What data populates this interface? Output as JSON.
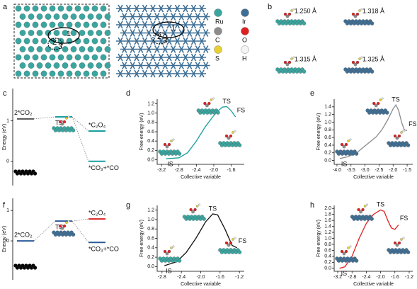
{
  "panel_labels": [
    "a",
    "b",
    "c",
    "d",
    "e",
    "f",
    "g",
    "h"
  ],
  "panel_a": {
    "site_labels": [
      "1",
      "2",
      "3"
    ],
    "legend": [
      {
        "label": "Ru",
        "color": "#3aa6a0"
      },
      {
        "label": "Ir",
        "color": "#3f6f95"
      },
      {
        "label": "C",
        "color": "#8c8c8c"
      },
      {
        "label": "O",
        "color": "#e02020"
      },
      {
        "label": "S",
        "color": "#e8d030"
      },
      {
        "label": "H",
        "color": "#f4f4f4"
      }
    ]
  },
  "panel_b": {
    "bond_lengths": [
      "1.250 Å",
      "1.318 Å",
      "1.315 Å",
      "1.325 Å"
    ]
  },
  "chart_data": [
    {
      "type": "energy-diagram",
      "ylabel": "Energy (eV)",
      "categories": [
        "2*CO₂",
        "TS",
        "*C₂O₄",
        "*CO₃+*CO"
      ],
      "values": [
        1.05,
        1.1,
        0.75,
        0.0
      ],
      "colors": [
        "#555555",
        "#1a9ea0",
        "#1a9ea0",
        "#1a9ea0"
      ],
      "ylim": [
        -0.6,
        1.8
      ],
      "yticks": [
        0,
        1
      ]
    },
    {
      "type": "line",
      "xlabel": "Collective variable",
      "ylabel": "Free energy (eV)",
      "annotations": [
        "IS",
        "TS",
        "FS"
      ],
      "color": "#1a9ea0",
      "x": [
        -3.1,
        -2.8,
        -2.6,
        -2.4,
        -2.2,
        -2.0,
        -1.9,
        -1.8,
        -1.7,
        -1.6,
        -1.5
      ],
      "values": [
        0.02,
        0.04,
        0.15,
        0.4,
        0.7,
        0.95,
        1.05,
        1.13,
        1.14,
        1.05,
        0.92
      ],
      "xlim": [
        -3.3,
        -1.3
      ],
      "ylim": [
        -0.1,
        1.3
      ],
      "xticks": [
        -3.2,
        -2.8,
        -2.4,
        {
          "value": -2,
          "label": "-2.0"
        },
        -1.6
      ],
      "yticks": [
        {
          "value": 0,
          "label": "0.0"
        },
        0.2,
        0.4,
        0.6,
        0.8,
        {
          "value": 1,
          "label": "1.0"
        },
        1.2
      ]
    },
    {
      "type": "line",
      "xlabel": "Collective variable",
      "ylabel": "Free energy (eV)",
      "annotations": [
        "IS",
        "TS",
        "FS"
      ],
      "color": "#8a8a8a",
      "x": [
        -3.9,
        -3.6,
        -3.3,
        -3.0,
        -2.8,
        -2.6,
        -2.4,
        -2.2,
        -2.0,
        -1.9,
        -1.8,
        -1.7,
        -1.6,
        -1.5
      ],
      "values": [
        0.05,
        0.1,
        0.2,
        0.38,
        0.5,
        0.62,
        0.8,
        1.05,
        1.35,
        1.45,
        1.3,
        1.0,
        0.8,
        0.78
      ],
      "xlim": [
        -4.1,
        -1.3
      ],
      "ylim": [
        -0.1,
        1.6
      ],
      "xticks": [
        {
          "value": -4,
          "label": "-4.0"
        },
        -3.5,
        {
          "value": -3,
          "label": "-3.0"
        },
        -2.5,
        {
          "value": -2,
          "label": "-2.0"
        },
        -1.5
      ],
      "yticks": [
        {
          "value": 0,
          "label": "0.0"
        },
        0.2,
        0.4,
        0.6,
        0.8,
        {
          "value": 1,
          "label": "1.0"
        },
        1.2,
        1.4
      ]
    },
    {
      "type": "energy-diagram",
      "ylabel": "Energy (eV)",
      "categories": [
        "2*CO₂",
        "TS",
        "*C₂O₄",
        "*CO₃+*CO"
      ],
      "values": [
        0,
        0.65,
        0.72,
        -0.05
      ],
      "colors": [
        "#2a5a9a",
        "#2a5a9a",
        "#e02020",
        "#2a5a9a"
      ],
      "ylim": [
        -1.28,
        1.4
      ],
      "yticks": [
        0,
        1
      ]
    },
    {
      "type": "line",
      "xlabel": "Collective variable",
      "ylabel": "Free energy (eV)",
      "annotations": [
        "IS",
        "TS",
        "FS"
      ],
      "color": "#111111",
      "x": [
        -2.75,
        -2.5,
        -2.3,
        -2.1,
        -1.9,
        -1.75,
        -1.65,
        -1.5,
        -1.35,
        -1.25
      ],
      "values": [
        0.02,
        0.1,
        0.3,
        0.6,
        0.95,
        1.12,
        1.1,
        0.8,
        0.45,
        0.4
      ],
      "xlim": [
        -2.9,
        -1.1
      ],
      "ylim": [
        -0.1,
        1.3
      ],
      "xticks": [
        -2.8,
        -2.4,
        {
          "value": -2,
          "label": "-2.0"
        },
        -1.6,
        -1.2
      ],
      "yticks": [
        {
          "value": 0,
          "label": "0.0"
        },
        0.2,
        0.4,
        0.6,
        0.8,
        {
          "value": 1,
          "label": "1.0"
        },
        1.2
      ]
    },
    {
      "type": "line",
      "xlabel": "Collective variable",
      "ylabel": "Free energy (eV)",
      "annotations": [
        "IS",
        "TS",
        "FS"
      ],
      "color": "#e02020",
      "x": [
        -3.15,
        -3.0,
        -2.8,
        -2.6,
        -2.4,
        -2.2,
        -2.0,
        -1.9,
        -1.8,
        -1.7,
        -1.6,
        -1.5
      ],
      "values": [
        0.0,
        0.05,
        0.4,
        1.0,
        1.5,
        1.8,
        1.95,
        1.9,
        1.6,
        1.35,
        1.3,
        1.45
      ],
      "xlim": [
        -3.3,
        -1.1
      ],
      "ylim": [
        -0.1,
        2.1
      ],
      "xticks": [
        -3.2,
        -2.8,
        -2.4,
        {
          "value": -2,
          "label": "-2.0"
        },
        -1.6,
        -1.2
      ],
      "yticks": [
        {
          "value": 0,
          "label": "0.0"
        },
        0.2,
        0.4,
        0.6,
        0.8,
        {
          "value": 1,
          "label": "1.0"
        },
        1.2,
        1.4,
        1.6,
        1.8,
        {
          "value": 2,
          "label": "2.0"
        }
      ]
    }
  ]
}
